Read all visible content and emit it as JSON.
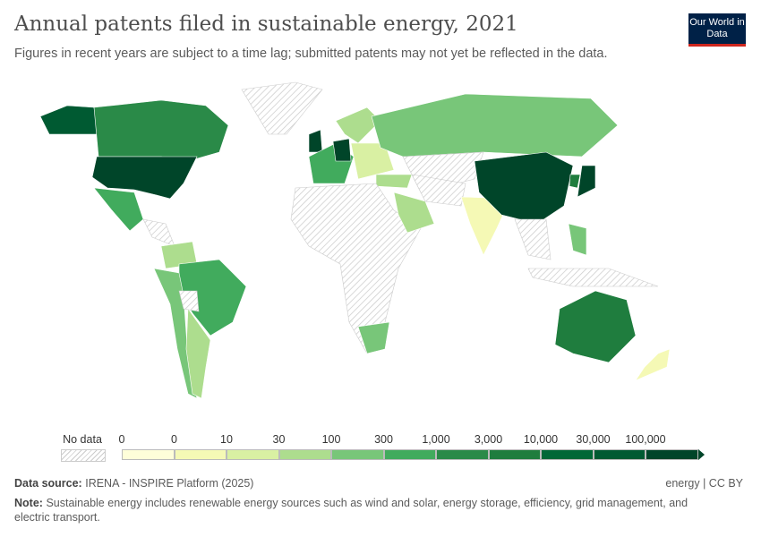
{
  "title": "Annual patents filed in sustainable energy, 2021",
  "subtitle": "Figures in recent years are subject to a time lag; submitted patents may not yet be reflected in the data.",
  "logo": "Our World in Data",
  "legend": {
    "no_data": "No data",
    "labels": [
      "0",
      "0",
      "10",
      "30",
      "100",
      "300",
      "1,000",
      "3,000",
      "10,000",
      "30,000",
      "100,000"
    ],
    "colors": [
      "#fefed9",
      "#f5f9b5",
      "#d9f0a3",
      "#addd8e",
      "#78c679",
      "#41ab5d",
      "#2a8a48",
      "#1f7d3e",
      "#006837",
      "#005a32",
      "#004529"
    ]
  },
  "footer": {
    "source_label": "Data source:",
    "source": "IRENA - INSPIRE Platform (2025)",
    "license": "energy | CC BY",
    "note_label": "Note:",
    "note": "Sustainable energy includes renewable energy sources such as wind and solar, energy storage, efficiency, grid management, and electric transport."
  }
}
